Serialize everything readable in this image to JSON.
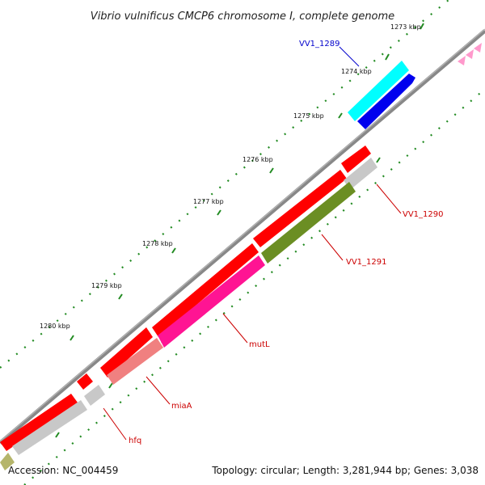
{
  "title": "Vibrio vulnificus CMCP6 chromosome I, complete genome",
  "ticks": [
    "1273 kbp",
    "1274 kbp",
    "1275 kbp",
    "1276 kbp",
    "1277 kbp",
    "1278 kbp",
    "1279 kbp",
    "1280 kbp"
  ],
  "genes": {
    "vv1_1289": "VV1_1289",
    "vv1_1290": "VV1_1290",
    "vv1_1291": "VV1_1291",
    "mutl": "mutL",
    "miaa": "miaA",
    "hfq": "hfq"
  },
  "footer": {
    "accession": "Accession: NC_004459",
    "summary": "Topology: circular; Length: 3,281,944 bp; Genes: 3,038"
  },
  "colors": {
    "backbone": "#888888",
    "forward_feature": "#ff0000",
    "reverse_feature": "#ff0000",
    "vv1_1289_upper": "#00ffff",
    "vv1_1289_lower": "#0000ee",
    "vv1_1290": "#c8c8c8",
    "vv1_1291": "#6b8e23",
    "mutl": "#ff1493",
    "miaa": "#f08080",
    "hfq": "#c8c8c8",
    "label_red": "#cc0000",
    "label_blue": "#0000cc",
    "tick_green": "#228b22",
    "pink_markers": "#ff99cc"
  }
}
